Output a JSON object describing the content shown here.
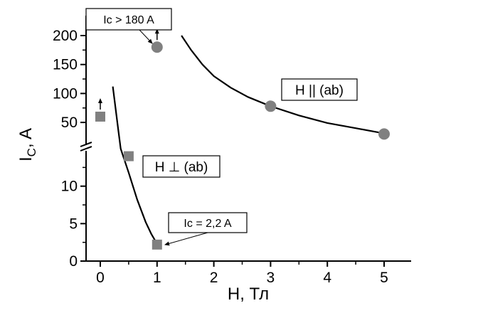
{
  "chart_data": {
    "type": "scatter",
    "xlabel": "H, Тл",
    "ylabel_main": "I",
    "ylabel_sub": "C",
    "ylabel_suffix": ", A",
    "x_axis": {
      "range": [
        -0.3,
        5.5
      ],
      "ticks": [
        0,
        1,
        2,
        3,
        4,
        5
      ],
      "tick_labels": [
        "0",
        "1",
        "2",
        "3",
        "4",
        "5"
      ]
    },
    "y_axis_broken": true,
    "y_axis_lower": {
      "range": [
        0,
        15
      ],
      "ticks": [
        0,
        5,
        10
      ],
      "tick_labels": [
        "0",
        "5",
        "10"
      ]
    },
    "y_axis_upper": {
      "range": [
        35,
        210
      ],
      "ticks": [
        50,
        100,
        150,
        200
      ],
      "tick_labels": [
        "50",
        "100",
        "150",
        "200"
      ]
    },
    "series": [
      {
        "orientation": "perpendicular",
        "marker": "square",
        "color": "#808080",
        "points": [
          {
            "x": 0,
            "y": 60,
            "segment": "upper",
            "lower_bound": true
          },
          {
            "x": 0.5,
            "y": 14,
            "segment": "lower"
          },
          {
            "x": 1,
            "y": 2.2,
            "segment": "lower"
          }
        ],
        "fit_curve": [
          {
            "x": 0.22,
            "y": 112,
            "segment": "upper"
          },
          {
            "x": 0.32,
            "y": 35,
            "segment": "upper"
          },
          {
            "x": 0.36,
            "y": 15,
            "segment": "lower"
          },
          {
            "x": 0.5,
            "y": 11.8,
            "segment": "lower"
          },
          {
            "x": 0.65,
            "y": 8.2,
            "segment": "lower"
          },
          {
            "x": 0.8,
            "y": 5.2,
            "segment": "lower"
          },
          {
            "x": 0.9,
            "y": 3.6,
            "segment": "lower"
          },
          {
            "x": 1.0,
            "y": 2.3,
            "segment": "lower"
          }
        ]
      },
      {
        "orientation": "parallel",
        "marker": "circle",
        "color": "#808080",
        "points": [
          {
            "x": 1,
            "y": 180,
            "segment": "upper",
            "lower_bound": true
          },
          {
            "x": 3,
            "y": 78,
            "segment": "upper"
          },
          {
            "x": 5,
            "y": 30,
            "segment": "upper"
          }
        ],
        "fit_curve": [
          {
            "x": 1.43,
            "y": 200
          },
          {
            "x": 1.6,
            "y": 175
          },
          {
            "x": 1.8,
            "y": 150
          },
          {
            "x": 2.0,
            "y": 130
          },
          {
            "x": 2.3,
            "y": 110
          },
          {
            "x": 2.6,
            "y": 94
          },
          {
            "x": 3.0,
            "y": 78
          },
          {
            "x": 3.5,
            "y": 62
          },
          {
            "x": 4.0,
            "y": 49
          },
          {
            "x": 4.5,
            "y": 40
          },
          {
            "x": 5.0,
            "y": 31
          }
        ]
      }
    ],
    "annotations": [
      {
        "text": "Ic > 180 A",
        "points_to": {
          "x": 1,
          "y": 180
        }
      },
      {
        "text": "H || (ab)"
      },
      {
        "text": "H ⊥ (ab)"
      },
      {
        "text": "Ic = 2,2 A",
        "points_to": {
          "x": 1,
          "y": 2.2
        }
      }
    ],
    "grid": false,
    "legend": "none"
  }
}
